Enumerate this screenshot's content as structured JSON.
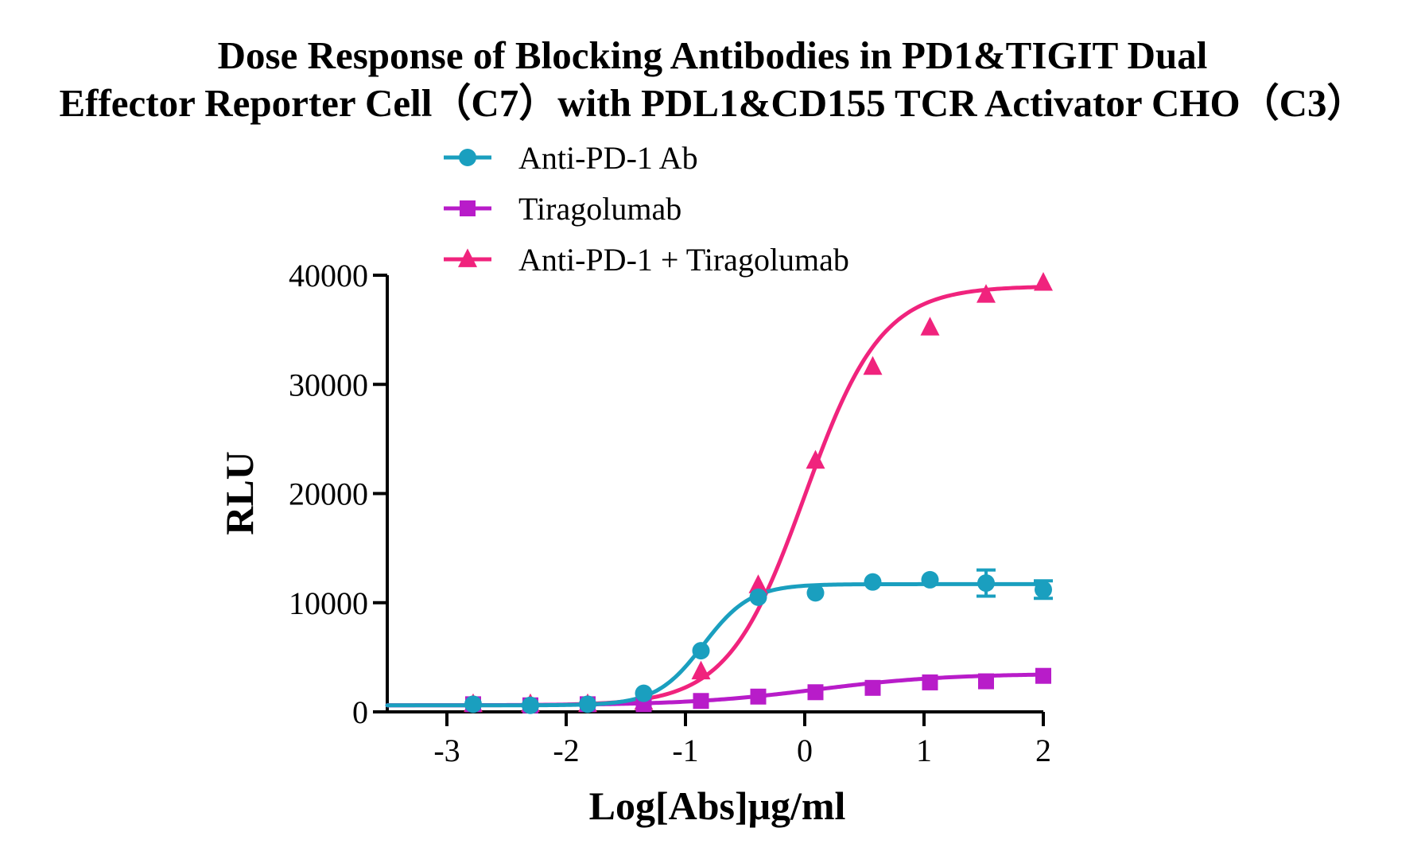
{
  "chart_data": {
    "type": "line",
    "title": "Dose Response of Blocking Antibodies in PD1&TIGIT Dual",
    "subtitle": "Effector Reporter Cell（C7）with PDL1&CD155 TCR Activator CHO（C3）",
    "xlabel": "Log[Abs]μg/ml",
    "ylabel": "RLU",
    "xlim": [
      -3.5,
      2
    ],
    "ylim": [
      0,
      40000
    ],
    "x_ticks": [
      -3,
      -2,
      -1,
      0,
      1,
      2
    ],
    "x_tick_labels": [
      "-3",
      "-2",
      "-1",
      "0",
      "1",
      "2"
    ],
    "y_ticks": [
      0,
      10000,
      20000,
      30000,
      40000
    ],
    "y_tick_labels": [
      "0",
      "10000",
      "20000",
      "30000",
      "40000"
    ],
    "grid": false,
    "legend_position": "top",
    "series": [
      {
        "name": "Anti-PD-1 Ab",
        "color": "#1a9fbf",
        "marker": "circle",
        "x": [
          -2.78,
          -2.3,
          -1.82,
          -1.35,
          -0.87,
          -0.39,
          0.09,
          0.57,
          1.05,
          1.52,
          2.0
        ],
        "y": [
          700,
          600,
          700,
          1700,
          5600,
          10500,
          10900,
          11900,
          12100,
          11800,
          11200
        ],
        "error": [
          0,
          0,
          0,
          0,
          0,
          0,
          0,
          0,
          0,
          1200,
          800
        ],
        "fit": {
          "bottom": 600,
          "top": 11700,
          "logEC50": -0.85,
          "hill": 2.2
        }
      },
      {
        "name": "Tiragolumab",
        "color": "#b81cc9",
        "marker": "square",
        "x": [
          -2.78,
          -2.3,
          -1.82,
          -1.35,
          -0.87,
          -0.39,
          0.09,
          0.57,
          1.05,
          1.52,
          2.0
        ],
        "y": [
          700,
          600,
          700,
          700,
          1000,
          1400,
          1800,
          2200,
          2700,
          2800,
          3300
        ],
        "error": [
          0,
          0,
          0,
          0,
          0,
          0,
          0,
          0,
          0,
          0,
          0
        ],
        "fit": {
          "bottom": 600,
          "top": 3500,
          "logEC50": 0.1,
          "hill": 0.8
        }
      },
      {
        "name": "Anti-PD-1 + Tiragolumab",
        "color": "#f0237d",
        "marker": "triangle",
        "x": [
          -2.78,
          -2.3,
          -1.82,
          -1.35,
          -0.87,
          -0.39,
          0.09,
          0.57,
          1.05,
          1.52,
          2.0
        ],
        "y": [
          700,
          700,
          700,
          900,
          3700,
          11600,
          23000,
          31600,
          35200,
          38200,
          39300
        ],
        "error": [
          0,
          0,
          0,
          0,
          0,
          0,
          0,
          0,
          0,
          0,
          0
        ],
        "fit": {
          "bottom": 600,
          "top": 39000,
          "logEC50": 0.0,
          "hill": 1.35
        }
      }
    ]
  }
}
